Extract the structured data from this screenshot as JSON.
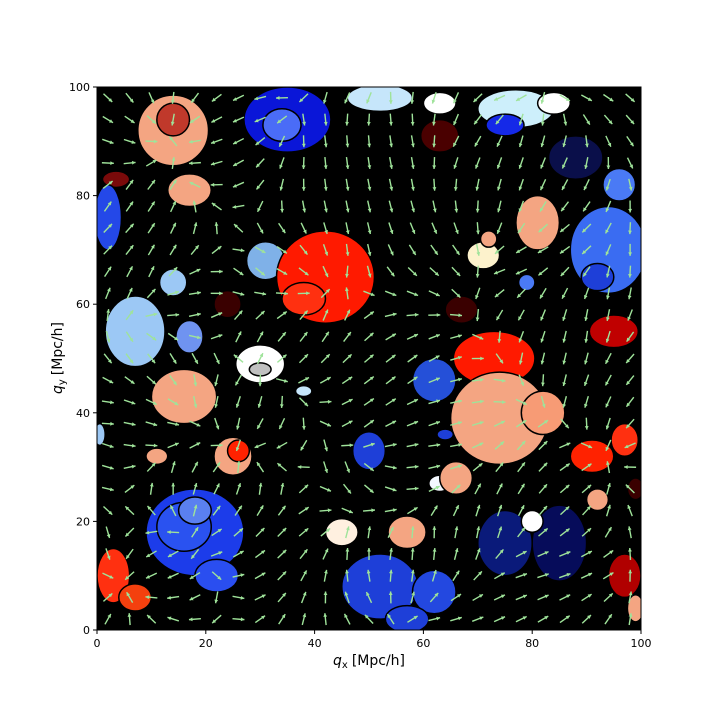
{
  "chart_data": {
    "type": "heatmap",
    "title": "",
    "xlabel": {
      "symbol": "q",
      "subscript": "x",
      "unit": "[Mpc/h]"
    },
    "ylabel": {
      "symbol": "q",
      "subscript": "y",
      "unit": "[Mpc/h]"
    },
    "xlim": [
      0,
      100
    ],
    "ylim": [
      0,
      100
    ],
    "xticks": [
      0,
      20,
      40,
      60,
      80,
      100
    ],
    "yticks": [
      0,
      20,
      40,
      60,
      80,
      100
    ],
    "background_color": "#000000",
    "arrow_color": "#9fe39a",
    "regions": [
      {
        "x": 14,
        "y": 92,
        "rx": 6.5,
        "ry": 6.5,
        "color": "#f4a582"
      },
      {
        "x": 14,
        "y": 94,
        "rx": 3,
        "ry": 3,
        "color": "#c0392b"
      },
      {
        "x": 35,
        "y": 94,
        "rx": 8,
        "ry": 6,
        "color": "#0a16d8"
      },
      {
        "x": 34,
        "y": 93,
        "rx": 3.5,
        "ry": 3,
        "color": "#4a6cf7"
      },
      {
        "x": 52,
        "y": 98,
        "rx": 6,
        "ry": 2.5,
        "color": "#c6e6fb"
      },
      {
        "x": 63,
        "y": 97,
        "rx": 3,
        "ry": 2,
        "color": "#ffffff"
      },
      {
        "x": 77,
        "y": 96,
        "rx": 7,
        "ry": 3.5,
        "color": "#cdeffb"
      },
      {
        "x": 84,
        "y": 97,
        "rx": 3,
        "ry": 2,
        "color": "#ffffff"
      },
      {
        "x": 75,
        "y": 93,
        "rx": 3.5,
        "ry": 2,
        "color": "#1529e8"
      },
      {
        "x": 63,
        "y": 91,
        "rx": 3.5,
        "ry": 3,
        "color": "#4a0000"
      },
      {
        "x": 3.5,
        "y": 83,
        "rx": 2.5,
        "ry": 1.5,
        "color": "#7a0a0a"
      },
      {
        "x": 17,
        "y": 81,
        "rx": 4,
        "ry": 3,
        "color": "#f4a582"
      },
      {
        "x": 88,
        "y": 87,
        "rx": 5,
        "ry": 4,
        "color": "#0a0f4a"
      },
      {
        "x": 96,
        "y": 82,
        "rx": 3,
        "ry": 3,
        "color": "#4a7af5"
      },
      {
        "x": 2,
        "y": 76,
        "rx": 2.5,
        "ry": 6,
        "color": "#2448e8"
      },
      {
        "x": 81,
        "y": 75,
        "rx": 4,
        "ry": 5,
        "color": "#f4a582"
      },
      {
        "x": 94,
        "y": 70,
        "rx": 7,
        "ry": 8,
        "color": "#3a6cf2"
      },
      {
        "x": 92,
        "y": 65,
        "rx": 3,
        "ry": 2.5,
        "color": "#1e3fd8"
      },
      {
        "x": 31,
        "y": 68,
        "rx": 3.5,
        "ry": 3.5,
        "color": "#7fb1e8"
      },
      {
        "x": 42,
        "y": 65,
        "rx": 9,
        "ry": 8.5,
        "color": "#ff1a00"
      },
      {
        "x": 38,
        "y": 61,
        "rx": 4,
        "ry": 3,
        "color": "#ff3010"
      },
      {
        "x": 71,
        "y": 69,
        "rx": 3,
        "ry": 2.5,
        "color": "#fdf2cc"
      },
      {
        "x": 72,
        "y": 72,
        "rx": 1.5,
        "ry": 1.5,
        "color": "#f4a582"
      },
      {
        "x": 79,
        "y": 64,
        "rx": 1.5,
        "ry": 1.5,
        "color": "#4a7af5"
      },
      {
        "x": 24,
        "y": 60,
        "rx": 2.5,
        "ry": 2.5,
        "color": "#3a0000"
      },
      {
        "x": 67,
        "y": 59,
        "rx": 3,
        "ry": 2.5,
        "color": "#3a0000"
      },
      {
        "x": 7,
        "y": 55,
        "rx": 5.5,
        "ry": 6.5,
        "color": "#9cc8f5"
      },
      {
        "x": 14,
        "y": 64,
        "rx": 2.5,
        "ry": 2.5,
        "color": "#9cc8f5"
      },
      {
        "x": 17,
        "y": 54,
        "rx": 2.5,
        "ry": 3,
        "color": "#6f93f0"
      },
      {
        "x": 30,
        "y": 49,
        "rx": 4.5,
        "ry": 3.5,
        "color": "#ffffff"
      },
      {
        "x": 30,
        "y": 48,
        "rx": 2,
        "ry": 1.2,
        "color": "#c0c0c0"
      },
      {
        "x": 73,
        "y": 50,
        "rx": 7.5,
        "ry": 5,
        "color": "#ff1a00"
      },
      {
        "x": 62,
        "y": 46,
        "rx": 4,
        "ry": 4,
        "color": "#2550d8"
      },
      {
        "x": 95,
        "y": 55,
        "rx": 4.5,
        "ry": 3,
        "color": "#c00000"
      },
      {
        "x": 16,
        "y": 43,
        "rx": 6,
        "ry": 5,
        "color": "#f4a582"
      },
      {
        "x": 38,
        "y": 44,
        "rx": 1.5,
        "ry": 1,
        "color": "#c6e6fb"
      },
      {
        "x": 74,
        "y": 39,
        "rx": 9,
        "ry": 8.5,
        "color": "#f4a582"
      },
      {
        "x": 82,
        "y": 40,
        "rx": 4,
        "ry": 4,
        "color": "#f79b75"
      },
      {
        "x": 0.5,
        "y": 36,
        "rx": 1,
        "ry": 2,
        "color": "#9cc8f5"
      },
      {
        "x": 25,
        "y": 32,
        "rx": 3.5,
        "ry": 3.5,
        "color": "#f4a582"
      },
      {
        "x": 26,
        "y": 33,
        "rx": 2,
        "ry": 2,
        "color": "#ff2200"
      },
      {
        "x": 11,
        "y": 32,
        "rx": 2,
        "ry": 1.5,
        "color": "#f4a582"
      },
      {
        "x": 50,
        "y": 33,
        "rx": 3,
        "ry": 3.5,
        "color": "#1e3fd8"
      },
      {
        "x": 64,
        "y": 36,
        "rx": 1.5,
        "ry": 1,
        "color": "#1e3fd8"
      },
      {
        "x": 63,
        "y": 27,
        "rx": 2,
        "ry": 1.5,
        "color": "#f4f8ff"
      },
      {
        "x": 66,
        "y": 28,
        "rx": 3,
        "ry": 3,
        "color": "#f4a582"
      },
      {
        "x": 91,
        "y": 32,
        "rx": 4,
        "ry": 3,
        "color": "#ff2200"
      },
      {
        "x": 97,
        "y": 35,
        "rx": 2.5,
        "ry": 3,
        "color": "#ff3010"
      },
      {
        "x": 99,
        "y": 26,
        "rx": 1.5,
        "ry": 2,
        "color": "#3a0000"
      },
      {
        "x": 18,
        "y": 18,
        "rx": 9,
        "ry": 8,
        "color": "#1c3cea"
      },
      {
        "x": 16,
        "y": 19,
        "rx": 5,
        "ry": 4.5,
        "color": "#2a52f0"
      },
      {
        "x": 18,
        "y": 22,
        "rx": 3,
        "ry": 2.5,
        "color": "#5a80f0"
      },
      {
        "x": 22,
        "y": 10,
        "rx": 4,
        "ry": 3,
        "color": "#2a4ef0"
      },
      {
        "x": 45,
        "y": 18,
        "rx": 3,
        "ry": 2.5,
        "color": "#fff0e0"
      },
      {
        "x": 57,
        "y": 18,
        "rx": 3.5,
        "ry": 3,
        "color": "#f4a582"
      },
      {
        "x": 52,
        "y": 8,
        "rx": 7,
        "ry": 6,
        "color": "#1e3fd8"
      },
      {
        "x": 62,
        "y": 7,
        "rx": 4,
        "ry": 4,
        "color": "#2348e0"
      },
      {
        "x": 57,
        "y": 2,
        "rx": 4,
        "ry": 2.5,
        "color": "#1e3fd8"
      },
      {
        "x": 75,
        "y": 16,
        "rx": 5,
        "ry": 6,
        "color": "#0a1a7a"
      },
      {
        "x": 85,
        "y": 16,
        "rx": 5,
        "ry": 7,
        "color": "#060c5a"
      },
      {
        "x": 80,
        "y": 20,
        "rx": 2,
        "ry": 2,
        "color": "#ffffff"
      },
      {
        "x": 3,
        "y": 10,
        "rx": 3,
        "ry": 5,
        "color": "#ff3010"
      },
      {
        "x": 7,
        "y": 6,
        "rx": 3,
        "ry": 2.5,
        "color": "#f4400e"
      },
      {
        "x": 97,
        "y": 10,
        "rx": 3,
        "ry": 4,
        "color": "#b00000"
      },
      {
        "x": 99,
        "y": 4,
        "rx": 1.5,
        "ry": 2.5,
        "color": "#f4a582"
      },
      {
        "x": 92,
        "y": 24,
        "rx": 2,
        "ry": 2,
        "color": "#f4a582"
      }
    ]
  }
}
